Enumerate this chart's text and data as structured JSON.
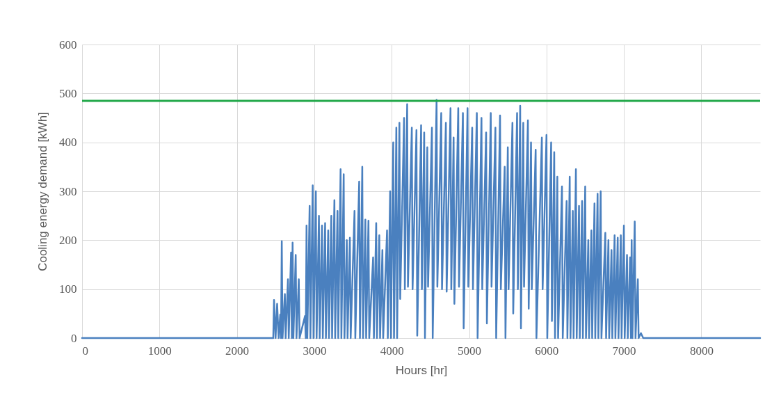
{
  "chart_data": {
    "type": "line",
    "xlabel": "Hours [hr]",
    "ylabel": "Cooling energy demand [kWh]",
    "xlim": [
      0,
      8760
    ],
    "xticks": [
      0,
      1000,
      2000,
      3000,
      4000,
      5000,
      6000,
      7000,
      8000
    ],
    "ylim": [
      0,
      600
    ],
    "yticks": [
      0,
      100,
      200,
      300,
      400,
      500,
      600
    ],
    "grid": true,
    "marker": "none",
    "line_style": "solid",
    "x": [
      0,
      2470,
      2480,
      2500,
      2520,
      2540,
      2560,
      2570,
      2580,
      2590,
      2620,
      2630,
      2660,
      2670,
      2700,
      2710,
      2720,
      2730,
      2760,
      2770,
      2800,
      2810,
      2880,
      2890,
      2900,
      2910,
      2940,
      2950,
      2980,
      2990,
      3020,
      3030,
      3060,
      3070,
      3100,
      3110,
      3140,
      3150,
      3180,
      3190,
      3220,
      3230,
      3260,
      3270,
      3300,
      3310,
      3340,
      3350,
      3380,
      3390,
      3420,
      3430,
      3460,
      3470,
      3520,
      3530,
      3580,
      3590,
      3620,
      3630,
      3660,
      3670,
      3700,
      3710,
      3760,
      3770,
      3800,
      3810,
      3840,
      3850,
      3880,
      3890,
      3940,
      3950,
      3980,
      3990,
      4020,
      4030,
      4060,
      4070,
      4100,
      4110,
      4160,
      4170,
      4200,
      4210,
      4260,
      4270,
      4320,
      4330,
      4380,
      4390,
      4420,
      4430,
      4460,
      4470,
      4520,
      4530,
      4580,
      4590,
      4640,
      4650,
      4700,
      4710,
      4760,
      4770,
      4800,
      4810,
      4860,
      4870,
      4920,
      4930,
      4980,
      4990,
      5040,
      5050,
      5100,
      5110,
      5160,
      5170,
      5220,
      5230,
      5280,
      5290,
      5340,
      5350,
      5400,
      5410,
      5460,
      5470,
      5500,
      5510,
      5560,
      5570,
      5620,
      5630,
      5660,
      5670,
      5700,
      5710,
      5760,
      5770,
      5800,
      5810,
      5860,
      5870,
      5940,
      5950,
      6000,
      6010,
      6060,
      6070,
      6100,
      6110,
      6140,
      6150,
      6200,
      6210,
      6260,
      6270,
      6300,
      6310,
      6340,
      6350,
      6380,
      6390,
      6420,
      6430,
      6460,
      6470,
      6500,
      6510,
      6540,
      6550,
      6580,
      6590,
      6620,
      6630,
      6660,
      6670,
      6700,
      6710,
      6760,
      6770,
      6800,
      6810,
      6840,
      6850,
      6880,
      6890,
      6920,
      6930,
      6960,
      6970,
      7000,
      7010,
      7040,
      7050,
      7080,
      7090,
      7100,
      7110,
      7140,
      7150,
      7180,
      7190,
      7220,
      7250,
      8760
    ],
    "series": [
      {
        "color": "#4a80bf",
        "values": [
          0,
          0,
          78,
          0,
          70,
          0,
          48,
          0,
          198,
          0,
          90,
          0,
          120,
          0,
          175,
          0,
          195,
          0,
          170,
          0,
          120,
          0,
          45,
          0,
          230,
          0,
          270,
          0,
          312,
          0,
          300,
          0,
          250,
          0,
          230,
          0,
          235,
          0,
          220,
          0,
          250,
          0,
          282,
          0,
          260,
          0,
          345,
          0,
          335,
          0,
          200,
          0,
          205,
          0,
          260,
          0,
          320,
          0,
          350,
          0,
          242,
          0,
          240,
          0,
          165,
          0,
          235,
          0,
          210,
          0,
          180,
          0,
          220,
          0,
          300,
          0,
          400,
          0,
          430,
          0,
          440,
          80,
          450,
          100,
          478,
          105,
          430,
          100,
          425,
          5,
          435,
          100,
          420,
          0,
          390,
          105,
          430,
          0,
          487,
          105,
          460,
          100,
          440,
          95,
          470,
          100,
          410,
          70,
          470,
          105,
          460,
          20,
          470,
          105,
          430,
          100,
          460,
          0,
          450,
          100,
          420,
          30,
          460,
          105,
          430,
          0,
          455,
          100,
          350,
          0,
          390,
          100,
          440,
          50,
          460,
          100,
          475,
          20,
          440,
          105,
          445,
          60,
          400,
          100,
          385,
          0,
          410,
          100,
          415,
          0,
          400,
          35,
          380,
          0,
          330,
          0,
          310,
          0,
          280,
          0,
          330,
          0,
          260,
          0,
          345,
          0,
          270,
          0,
          280,
          0,
          310,
          0,
          200,
          0,
          220,
          0,
          275,
          0,
          295,
          0,
          300,
          0,
          215,
          0,
          200,
          0,
          180,
          0,
          210,
          0,
          205,
          0,
          210,
          0,
          230,
          0,
          170,
          0,
          165,
          0,
          200,
          0,
          238,
          0,
          120,
          0,
          10,
          0,
          0
        ]
      }
    ],
    "ref_lines": [
      {
        "axis": "y",
        "value": 485,
        "color": "#22a84a"
      }
    ]
  }
}
